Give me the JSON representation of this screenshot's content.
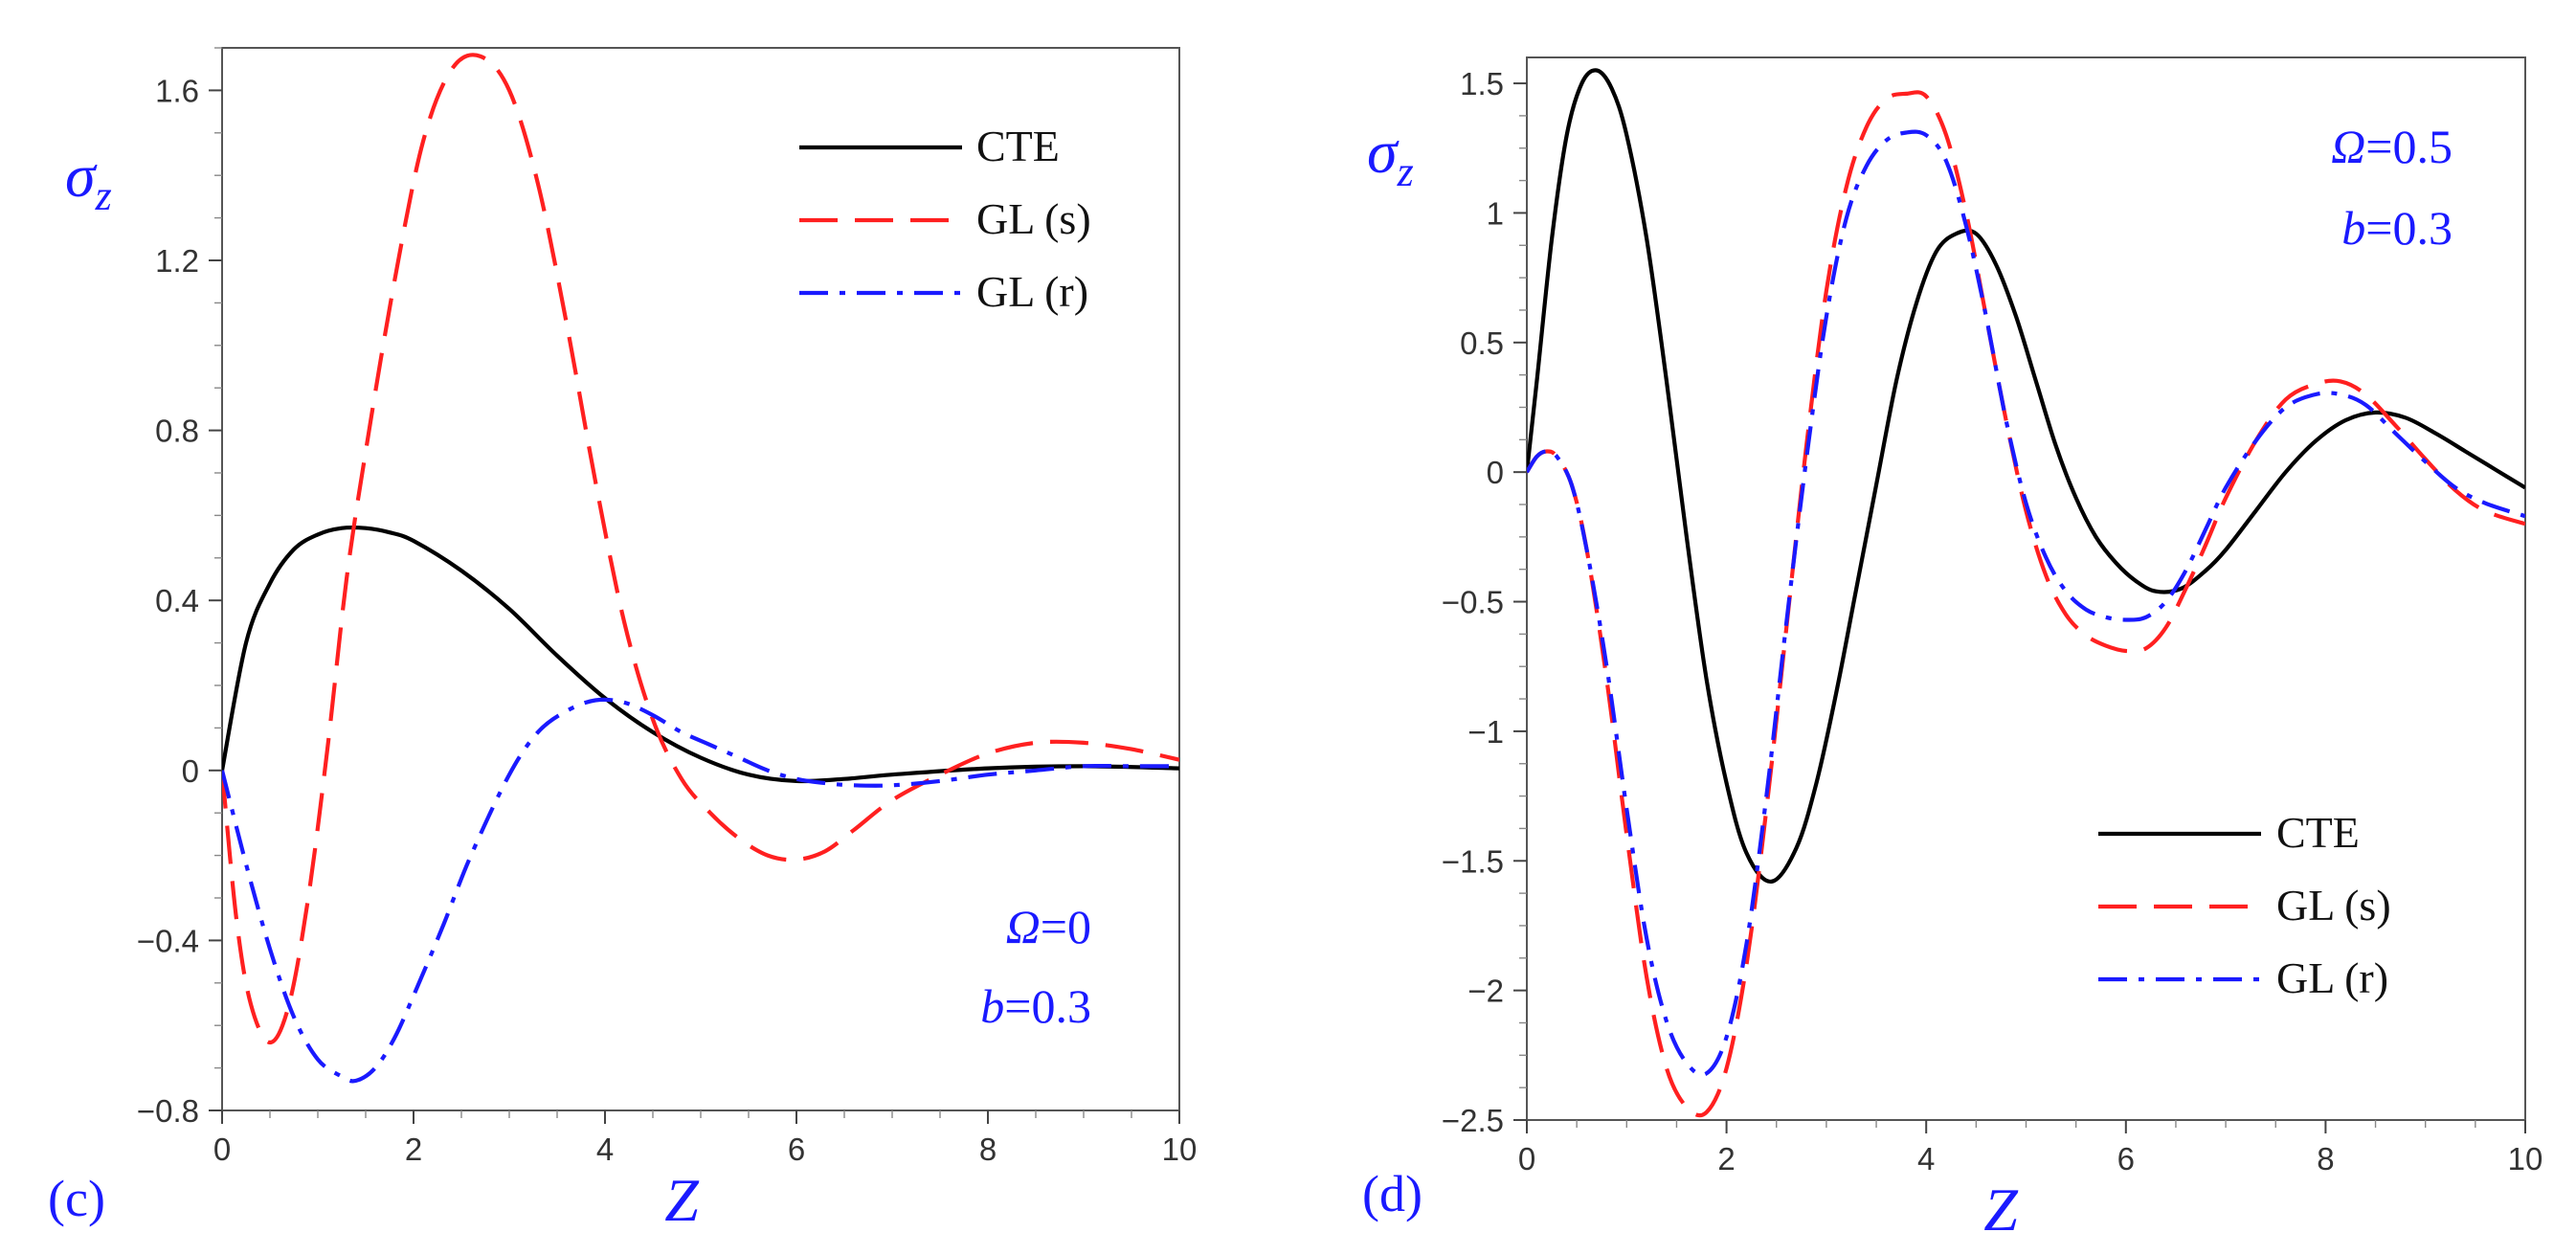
{
  "chart_data": [
    {
      "type": "line",
      "panel_label": "(c)",
      "xlabel": "Z",
      "ylabel": {
        "symbol": "σ",
        "subscript": "z"
      },
      "xlim": [
        0,
        10
      ],
      "ylim": [
        -0.8,
        1.7
      ],
      "x_ticks": [
        0,
        2,
        4,
        6,
        8,
        10
      ],
      "x_tick_labels": [
        "0",
        "2",
        "4",
        "6",
        "8",
        "10"
      ],
      "y_ticks": [
        -0.8,
        -0.4,
        0,
        0.4,
        0.8,
        1.2,
        1.6
      ],
      "y_tick_labels": [
        "−0.8",
        "−0.4",
        "0",
        "0.4",
        "0.8",
        "1.2",
        "1.6"
      ],
      "legend_position": "top-right",
      "annotations": [
        {
          "symbol": "Ω",
          "value": "=0"
        },
        {
          "symbol": "b",
          "value": "=0.3"
        }
      ],
      "series": [
        {
          "name": "CTE",
          "color": "#000000",
          "dash": "solid",
          "x": [
            0,
            0.25,
            0.5,
            0.75,
            1.0,
            1.25,
            1.5,
            1.75,
            2.0,
            2.5,
            3.0,
            3.5,
            4.0,
            4.5,
            5.0,
            5.5,
            6.0,
            6.5,
            7.0,
            8.0,
            9.0,
            10.0
          ],
          "y": [
            0,
            0.3,
            0.44,
            0.52,
            0.555,
            0.57,
            0.57,
            0.56,
            0.54,
            0.47,
            0.38,
            0.27,
            0.17,
            0.09,
            0.03,
            -0.01,
            -0.025,
            -0.02,
            -0.01,
            0.005,
            0.01,
            0.005
          ]
        },
        {
          "name": "GL (s)",
          "color": "#ff2020",
          "dash": "dash",
          "x": [
            0,
            0.15,
            0.3,
            0.5,
            0.7,
            0.9,
            1.1,
            1.3,
            1.5,
            1.8,
            2.1,
            2.4,
            2.7,
            3.0,
            3.3,
            3.6,
            3.9,
            4.2,
            4.5,
            4.8,
            5.1,
            5.4,
            5.7,
            6.0,
            6.3,
            6.6,
            7.0,
            7.5,
            8.0,
            8.5,
            9.0,
            9.5,
            10.0
          ],
          "y": [
            0,
            -0.35,
            -0.55,
            -0.64,
            -0.55,
            -0.3,
            0.05,
            0.45,
            0.75,
            1.15,
            1.48,
            1.65,
            1.68,
            1.6,
            1.38,
            1.05,
            0.68,
            0.35,
            0.12,
            -0.02,
            -0.1,
            -0.16,
            -0.2,
            -0.21,
            -0.19,
            -0.14,
            -0.07,
            -0.01,
            0.04,
            0.065,
            0.065,
            0.05,
            0.025
          ]
        },
        {
          "name": "GL (r)",
          "color": "#1a1aff",
          "dash": "dashdot",
          "x": [
            0,
            0.25,
            0.5,
            0.75,
            1.0,
            1.25,
            1.4,
            1.6,
            1.8,
            2.0,
            2.3,
            2.6,
            3.0,
            3.3,
            3.6,
            3.9,
            4.2,
            4.5,
            4.8,
            5.1,
            5.4,
            5.7,
            6.0,
            6.3,
            6.6,
            7.0,
            7.5,
            8.0,
            8.5,
            9.0,
            9.5,
            10.0
          ],
          "y": [
            0,
            -0.22,
            -0.42,
            -0.58,
            -0.68,
            -0.72,
            -0.73,
            -0.7,
            -0.63,
            -0.53,
            -0.37,
            -0.2,
            -0.01,
            0.09,
            0.14,
            0.165,
            0.16,
            0.13,
            0.09,
            0.06,
            0.03,
            0.0,
            -0.02,
            -0.03,
            -0.035,
            -0.035,
            -0.025,
            -0.01,
            0.0,
            0.01,
            0.01,
            0.01
          ]
        }
      ]
    },
    {
      "type": "line",
      "panel_label": "(d)",
      "xlabel": "Z",
      "ylabel": {
        "symbol": "σ",
        "subscript": "z"
      },
      "xlim": [
        0,
        10
      ],
      "ylim": [
        -2.5,
        1.6
      ],
      "x_ticks": [
        0,
        2,
        4,
        6,
        8,
        10
      ],
      "x_tick_labels": [
        "0",
        "2",
        "4",
        "6",
        "8",
        "10"
      ],
      "y_ticks": [
        -2.5,
        -2,
        -1.5,
        -1,
        -0.5,
        0,
        0.5,
        1,
        1.5
      ],
      "y_tick_labels": [
        "−2.5",
        "−2",
        "−1.5",
        "−1",
        "−0.5",
        "0",
        "0.5",
        "1",
        "1.5"
      ],
      "legend_position": "bottom-right",
      "annotations": [
        {
          "symbol": "Ω",
          "value": "=0.5"
        },
        {
          "symbol": "b",
          "value": "=0.3"
        }
      ],
      "series": [
        {
          "name": "CTE",
          "color": "#000000",
          "dash": "solid",
          "x": [
            0,
            0.1,
            0.25,
            0.4,
            0.55,
            0.7,
            0.85,
            1.0,
            1.2,
            1.4,
            1.6,
            1.8,
            2.0,
            2.2,
            2.45,
            2.7,
            2.9,
            3.1,
            3.3,
            3.5,
            3.7,
            3.9,
            4.1,
            4.3,
            4.5,
            4.7,
            4.9,
            5.1,
            5.3,
            5.5,
            5.7,
            5.9,
            6.1,
            6.3,
            6.55,
            6.8,
            7.0,
            7.3,
            7.6,
            7.9,
            8.2,
            8.5,
            8.8,
            9.1,
            9.4,
            9.7,
            10.0
          ],
          "y": [
            0,
            0.35,
            0.9,
            1.3,
            1.5,
            1.55,
            1.48,
            1.3,
            0.9,
            0.35,
            -0.25,
            -0.8,
            -1.2,
            -1.47,
            -1.58,
            -1.45,
            -1.2,
            -0.85,
            -0.45,
            -0.05,
            0.35,
            0.65,
            0.85,
            0.92,
            0.92,
            0.8,
            0.6,
            0.35,
            0.1,
            -0.1,
            -0.25,
            -0.35,
            -0.42,
            -0.46,
            -0.45,
            -0.38,
            -0.3,
            -0.15,
            0.0,
            0.12,
            0.2,
            0.23,
            0.21,
            0.15,
            0.08,
            0.01,
            -0.06
          ]
        },
        {
          "name": "GL (s)",
          "color": "#ff2020",
          "dash": "dash",
          "x": [
            0,
            0.1,
            0.2,
            0.3,
            0.45,
            0.6,
            0.8,
            1.0,
            1.2,
            1.4,
            1.6,
            1.8,
            2.0,
            2.2,
            2.4,
            2.6,
            2.8,
            3.0,
            3.2,
            3.4,
            3.6,
            3.8,
            4.0,
            4.2,
            4.4,
            4.6,
            4.8,
            5.0,
            5.2,
            5.4,
            5.6,
            5.8,
            6.0,
            6.2,
            6.4,
            6.6,
            6.8,
            7.0,
            7.3,
            7.6,
            7.9,
            8.15,
            8.4,
            8.7,
            9.0,
            9.3,
            9.6,
            10.0
          ],
          "y": [
            0,
            0.06,
            0.08,
            0.06,
            -0.05,
            -0.3,
            -0.8,
            -1.4,
            -1.95,
            -2.3,
            -2.45,
            -2.47,
            -2.3,
            -1.9,
            -1.3,
            -0.6,
            0.1,
            0.7,
            1.1,
            1.33,
            1.44,
            1.46,
            1.45,
            1.3,
            1.0,
            0.6,
            0.2,
            -0.15,
            -0.4,
            -0.55,
            -0.63,
            -0.67,
            -0.69,
            -0.68,
            -0.6,
            -0.45,
            -0.28,
            -0.1,
            0.12,
            0.28,
            0.34,
            0.35,
            0.3,
            0.18,
            0.05,
            -0.07,
            -0.15,
            -0.2
          ]
        },
        {
          "name": "GL (r)",
          "color": "#1a1aff",
          "dash": "dashdot",
          "x": [
            0,
            0.1,
            0.2,
            0.3,
            0.45,
            0.6,
            0.8,
            1.0,
            1.2,
            1.4,
            1.6,
            1.8,
            2.0,
            2.2,
            2.4,
            2.6,
            2.8,
            3.0,
            3.2,
            3.4,
            3.6,
            3.8,
            4.0,
            4.2,
            4.4,
            4.6,
            4.8,
            5.0,
            5.2,
            5.4,
            5.6,
            5.8,
            6.0,
            6.2,
            6.4,
            6.6,
            6.8,
            7.0,
            7.3,
            7.6,
            7.9,
            8.15,
            8.4,
            8.7,
            9.0,
            9.3,
            9.6,
            10.0
          ],
          "y": [
            0,
            0.06,
            0.08,
            0.06,
            -0.05,
            -0.3,
            -0.75,
            -1.3,
            -1.8,
            -2.12,
            -2.28,
            -2.32,
            -2.18,
            -1.82,
            -1.25,
            -0.58,
            0.05,
            0.6,
            0.98,
            1.18,
            1.28,
            1.31,
            1.3,
            1.2,
            0.95,
            0.6,
            0.2,
            -0.12,
            -0.33,
            -0.46,
            -0.53,
            -0.56,
            -0.57,
            -0.56,
            -0.5,
            -0.38,
            -0.22,
            -0.06,
            0.12,
            0.25,
            0.3,
            0.3,
            0.26,
            0.15,
            0.04,
            -0.06,
            -0.12,
            -0.17
          ]
        }
      ]
    }
  ]
}
